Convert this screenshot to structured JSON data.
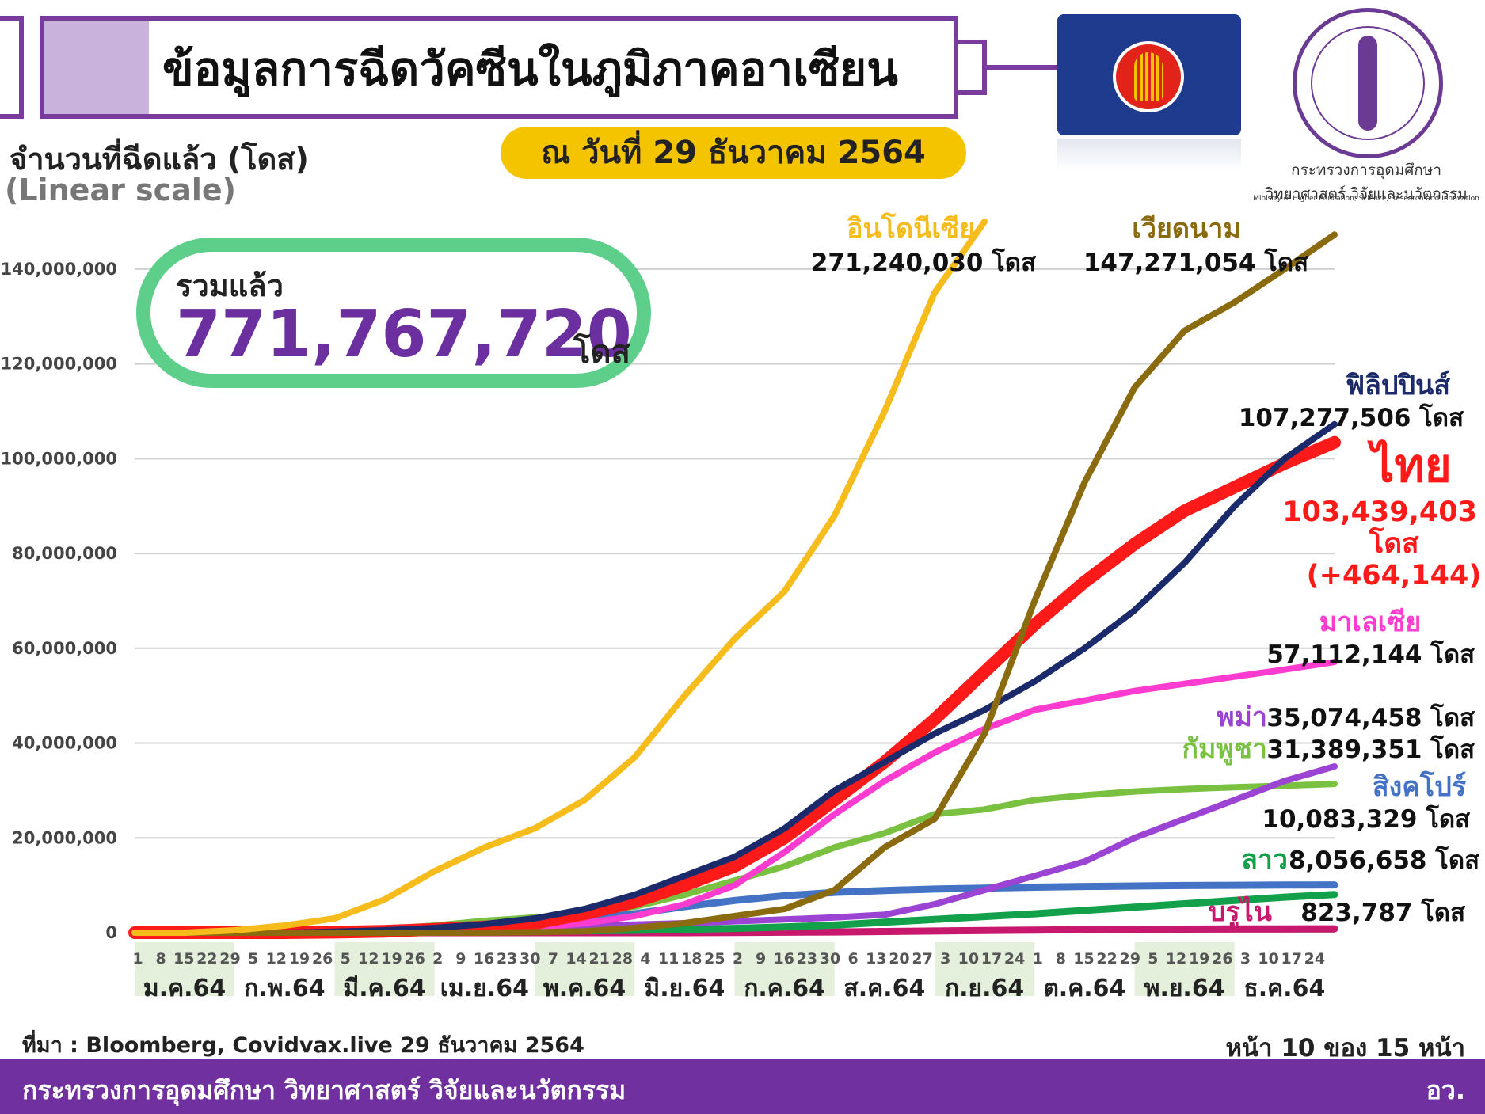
{
  "header": {
    "title": "ข้อมูลการฉีดวัคซีนในภูมิภาคอาเซียน",
    "date_badge": "ณ วันที่ 29 ธันวาคม 2564",
    "ministry_th_line1": "กระทรวงการอุดมศึกษา",
    "ministry_th_line2": "วิทยาศาสตร์ วิจัยและนวัตกรรม",
    "ministry_en": "Ministry of Higher Education, Science, Research and Innovation"
  },
  "axis": {
    "ylabel": "จำนวนที่ฉีดแล้ว (โดส)",
    "scale_note": "(Linear scale)"
  },
  "total": {
    "label": "รวมแล้ว",
    "value": "771,767,720",
    "unit": "โดส"
  },
  "footer": {
    "source": "ที่มา : Bloomberg, Covidvax.live 29 ธันวาคม 2564",
    "page": "หน้า 10 ของ 15 หน้า",
    "org": "กระทรวงการอุดมศึกษา วิทยาศาสตร์ วิจัยและนวัตกรรม",
    "org_short": "อว."
  },
  "colors": {
    "accent_purple": "#7030a0",
    "badge_yellow": "#f5c400",
    "total_green": "#5dcf8a"
  },
  "chart_data": {
    "type": "line",
    "ylim": [
      0,
      150000000
    ],
    "y_ticks": [
      "0",
      "20,000,000",
      "40,000,000",
      "60,000,000",
      "80,000,000",
      "100,000,000",
      "120,000,000",
      "140,000,000"
    ],
    "grid": true,
    "x_day_ticks": [
      "1",
      "8",
      "15",
      "22",
      "29",
      "5",
      "12",
      "19",
      "26",
      "5",
      "12",
      "19",
      "26",
      "2",
      "9",
      "16",
      "23",
      "30",
      "7",
      "14",
      "21",
      "28",
      "4",
      "11",
      "18",
      "25",
      "2",
      "9",
      "16",
      "23",
      "30",
      "6",
      "13",
      "20",
      "27",
      "3",
      "10",
      "17",
      "24",
      "1",
      "8",
      "15",
      "22",
      "29",
      "5",
      "12",
      "19",
      "26",
      "3",
      "10",
      "17",
      "24"
    ],
    "months": [
      "ม.ค.64",
      "ก.พ.64",
      "มี.ค.64",
      "เม.ย.64",
      "พ.ค.64",
      "มิ.ย.64",
      "ก.ค.64",
      "ส.ค.64",
      "ก.ย.64",
      "ต.ค.64",
      "พ.ย.64",
      "ธ.ค.64"
    ],
    "x": [
      0,
      0.5,
      1,
      1.5,
      2,
      2.5,
      3,
      3.5,
      4,
      4.5,
      5,
      5.5,
      6,
      6.5,
      7,
      7.5,
      8,
      8.5,
      9,
      9.5,
      10,
      10.5,
      11,
      11.5,
      12
    ],
    "series": [
      {
        "name": "อินโดนีเซีย",
        "label_value": "271,240,030 โดส",
        "color": "#f5bc1c",
        "values": [
          0,
          0,
          500000,
          1500000,
          3000000,
          7000000,
          13000000,
          18000000,
          22000000,
          28000000,
          37000000,
          50000000,
          62000000,
          72000000,
          88000000,
          110000000,
          135000000,
          150000000,
          null,
          null,
          null,
          null,
          null,
          null,
          null
        ]
      },
      {
        "name": "เวียดนาม",
        "label_value": "147,271,054 โดส",
        "color": "#8b6b0f",
        "values": [
          0,
          0,
          0,
          0,
          0,
          0,
          0,
          0,
          100000,
          300000,
          1000000,
          2000000,
          3500000,
          5000000,
          9000000,
          18000000,
          24000000,
          42000000,
          70000000,
          95000000,
          115000000,
          127000000,
          133000000,
          140000000,
          147271054
        ]
      },
      {
        "name": "ฟิลิปปินส์",
        "label_value": "107,277,506 โดส",
        "color": "#1b2a6b",
        "values": [
          0,
          0,
          0,
          0,
          200000,
          500000,
          1000000,
          1800000,
          3000000,
          5000000,
          8000000,
          12000000,
          16000000,
          22000000,
          30000000,
          36000000,
          42000000,
          47000000,
          53000000,
          60000000,
          68000000,
          78000000,
          90000000,
          100000000,
          107277506
        ]
      },
      {
        "name": "ไทย",
        "label_value": "103,439,403",
        "label_unit": "โดส",
        "label_delta": "(+464,144)",
        "color": "#ff1a1a",
        "values": [
          0,
          0,
          0,
          0,
          100000,
          300000,
          700000,
          1200000,
          2000000,
          4000000,
          6500000,
          10000000,
          14000000,
          20000000,
          28000000,
          36000000,
          45000000,
          55000000,
          65000000,
          74000000,
          82000000,
          89000000,
          94000000,
          99000000,
          103439403
        ]
      },
      {
        "name": "มาเลเซีย",
        "label_value": "57,112,144 โดส",
        "color": "#ff3ccf",
        "values": [
          0,
          0,
          0,
          0,
          0,
          100000,
          300000,
          600000,
          1000000,
          2000000,
          3500000,
          6000000,
          10000000,
          17000000,
          25000000,
          32000000,
          38000000,
          43000000,
          47000000,
          49000000,
          51000000,
          52500000,
          54000000,
          55500000,
          57112144
        ]
      },
      {
        "name": "พม่า",
        "label_value": "35,074,458 โดส",
        "color": "#9b44d4",
        "values": [
          0,
          0,
          0,
          0,
          200000,
          600000,
          900000,
          1100000,
          1300000,
          1500000,
          1700000,
          2000000,
          2400000,
          2800000,
          3200000,
          3800000,
          6000000,
          9000000,
          12000000,
          15000000,
          20000000,
          24000000,
          28000000,
          32000000,
          35074458
        ]
      },
      {
        "name": "กัมพูชา",
        "label_value": "31,389,351 โดส",
        "color": "#7ac142",
        "values": [
          0,
          0,
          0,
          0,
          300000,
          800000,
          1500000,
          2500000,
          3200000,
          4000000,
          5500000,
          8000000,
          11000000,
          14000000,
          18000000,
          21000000,
          25000000,
          26000000,
          28000000,
          29000000,
          29800000,
          30300000,
          30700000,
          31000000,
          31389351
        ]
      },
      {
        "name": "สิงคโปร์",
        "label_value": "10,083,329 โดส",
        "color": "#4472c4",
        "values": [
          0,
          0,
          0,
          100000,
          400000,
          800000,
          1200000,
          1700000,
          2300000,
          3000000,
          4000000,
          5500000,
          6800000,
          7800000,
          8500000,
          8900000,
          9200000,
          9400000,
          9600000,
          9750000,
          9850000,
          9950000,
          10000000,
          10050000,
          10083329
        ]
      },
      {
        "name": "ลาว",
        "label_value": "8,056,658 โดส",
        "color": "#12a14a",
        "values": [
          0,
          0,
          0,
          0,
          0,
          50000,
          100000,
          200000,
          300000,
          400000,
          500000,
          700000,
          900000,
          1200000,
          1600000,
          2200000,
          2800000,
          3400000,
          4000000,
          4700000,
          5400000,
          6100000,
          6800000,
          7500000,
          8056658
        ]
      },
      {
        "name": "บรูไน",
        "label_value": "823,787 โดส",
        "color": "#c8186e",
        "values": [
          0,
          0,
          0,
          0,
          0,
          0,
          0,
          0,
          0,
          0,
          0,
          0,
          50000,
          100000,
          150000,
          250000,
          350000,
          450000,
          550000,
          650000,
          700000,
          750000,
          790000,
          810000,
          823787
        ]
      }
    ]
  }
}
